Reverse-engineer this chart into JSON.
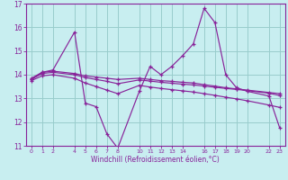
{
  "xlabel": "Windchill (Refroidissement éolien,°C)",
  "bg_color": "#c8eef0",
  "grid_color": "#99cccc",
  "line_color": "#882299",
  "series": [
    {
      "x": [
        0,
        1,
        2,
        4,
        5,
        6,
        7,
        8,
        10,
        11,
        12,
        13,
        14,
        15,
        16,
        17,
        18,
        19,
        20,
        22,
        23
      ],
      "y": [
        13.8,
        14.1,
        14.2,
        15.8,
        12.8,
        12.65,
        11.5,
        10.9,
        13.3,
        14.35,
        14.0,
        14.35,
        14.8,
        15.3,
        16.8,
        16.2,
        14.0,
        13.45,
        13.3,
        13.1,
        11.75
      ]
    },
    {
      "x": [
        0,
        1,
        2,
        4,
        5,
        6,
        7,
        8,
        10,
        11,
        12,
        13,
        14,
        15,
        16,
        17,
        18,
        19,
        20,
        22,
        23
      ],
      "y": [
        13.85,
        14.1,
        14.15,
        14.05,
        13.95,
        13.9,
        13.85,
        13.8,
        13.85,
        13.8,
        13.75,
        13.72,
        13.68,
        13.65,
        13.58,
        13.52,
        13.45,
        13.4,
        13.35,
        13.25,
        13.2
      ]
    },
    {
      "x": [
        0,
        1,
        2,
        4,
        5,
        6,
        7,
        8,
        10,
        11,
        12,
        13,
        14,
        15,
        16,
        17,
        18,
        19,
        20,
        22,
        23
      ],
      "y": [
        13.8,
        14.05,
        14.1,
        14.0,
        13.88,
        13.8,
        13.72,
        13.62,
        13.78,
        13.73,
        13.68,
        13.64,
        13.6,
        13.57,
        13.52,
        13.47,
        13.42,
        13.38,
        13.33,
        13.22,
        13.12
      ]
    },
    {
      "x": [
        0,
        1,
        2,
        4,
        5,
        6,
        7,
        8,
        10,
        11,
        12,
        13,
        14,
        15,
        16,
        17,
        18,
        19,
        20,
        22,
        23
      ],
      "y": [
        13.75,
        13.95,
        14.0,
        13.85,
        13.65,
        13.5,
        13.35,
        13.2,
        13.55,
        13.48,
        13.42,
        13.37,
        13.32,
        13.27,
        13.2,
        13.13,
        13.05,
        12.98,
        12.9,
        12.72,
        12.62
      ]
    }
  ],
  "ylim": [
    11,
    17
  ],
  "yticks": [
    11,
    12,
    13,
    14,
    15,
    16,
    17
  ],
  "xticks": [
    0,
    1,
    2,
    4,
    5,
    6,
    7,
    8,
    10,
    11,
    12,
    13,
    14,
    16,
    17,
    18,
    19,
    20,
    22,
    23
  ],
  "xlim": [
    -0.5,
    23.5
  ]
}
